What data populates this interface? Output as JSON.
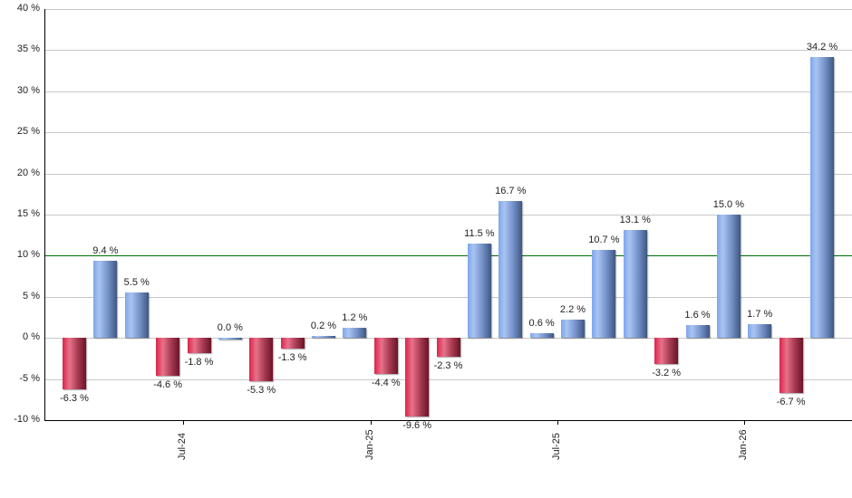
{
  "chart_data": {
    "type": "bar",
    "title": "",
    "xlabel": "",
    "ylabel": "",
    "ylim": [
      -10,
      40
    ],
    "y_ticks": [
      "40 %",
      "35 %",
      "30 %",
      "25 %",
      "20 %",
      "15 %",
      "10 %",
      "5 %",
      "0 %",
      "-5 %",
      "-10 %"
    ],
    "y_tick_values": [
      40,
      35,
      30,
      25,
      20,
      15,
      10,
      5,
      0,
      -5,
      -10
    ],
    "x_tick_labels": [
      {
        "label": "Jul-24",
        "bar_index": 3
      },
      {
        "label": "Jan-25",
        "bar_index": 9
      },
      {
        "label": "Jul-25",
        "bar_index": 15
      },
      {
        "label": "Jan-26",
        "bar_index": 21
      }
    ],
    "reference_line": {
      "value": 10,
      "color": "#007000"
    },
    "grid": true,
    "legend": null,
    "positive_color": "#7794cc",
    "negative_color": "#c0304f",
    "values": [
      -6.3,
      9.4,
      5.5,
      -4.6,
      -1.8,
      0.0,
      -5.3,
      -1.3,
      0.2,
      1.2,
      -4.4,
      -9.6,
      -2.3,
      11.5,
      16.7,
      0.6,
      2.2,
      10.7,
      13.1,
      -3.2,
      1.6,
      15.0,
      1.7,
      -6.7,
      34.2
    ],
    "labels": [
      "-6.3 %",
      "9.4 %",
      "5.5 %",
      "-4.6 %",
      "-1.8 %",
      "0.0 %",
      "-5.3 %",
      "-1.3 %",
      "0.2 %",
      "1.2 %",
      "-4.4 %",
      "-9.6 %",
      "-2.3 %",
      "11.5 %",
      "16.7 %",
      "0.6 %",
      "2.2 %",
      "10.7 %",
      "13.1 %",
      "-3.2 %",
      "1.6 %",
      "15.0 %",
      "1.7 %",
      "-6.7 %",
      "34.2 %"
    ]
  }
}
